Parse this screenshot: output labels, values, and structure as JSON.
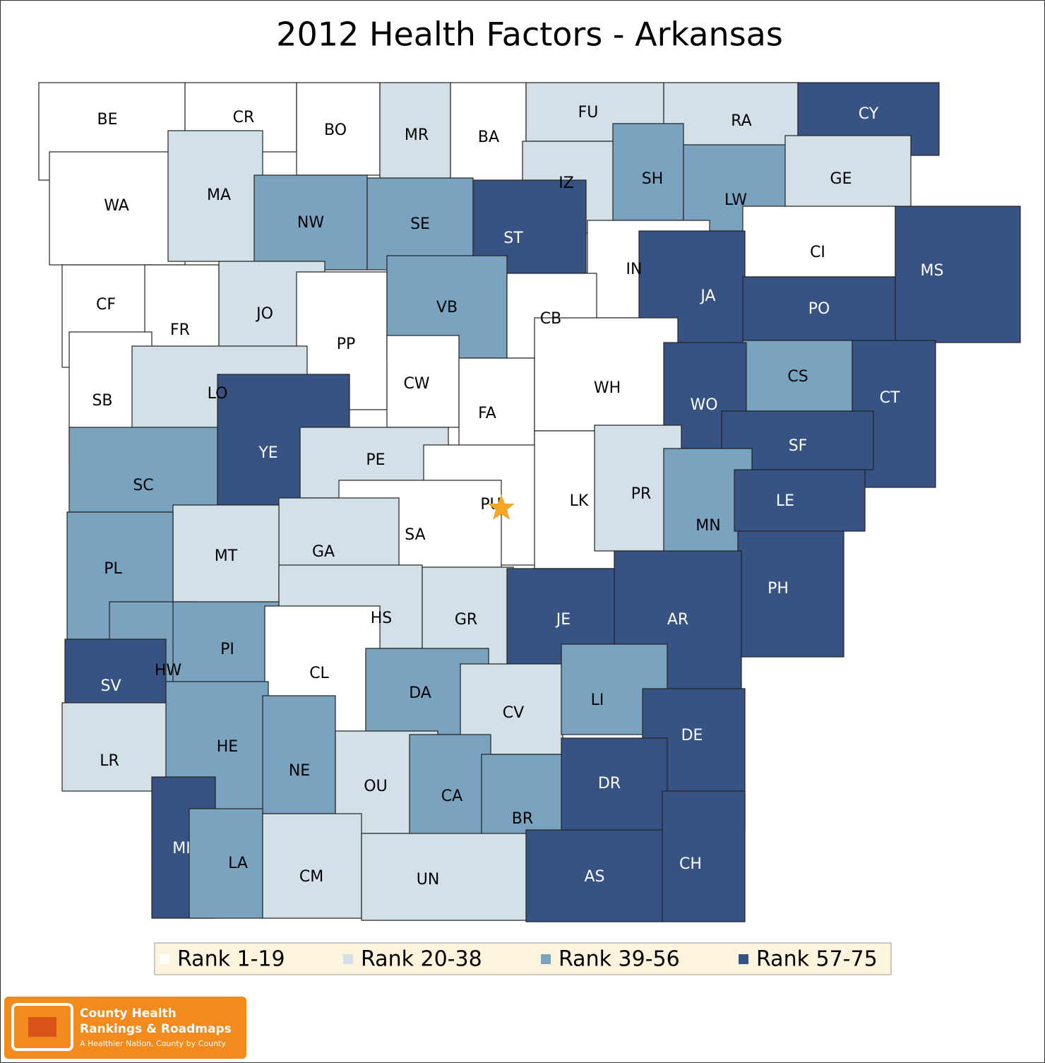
{
  "title": "2012 Health Factors - Arkansas",
  "legend": [
    {
      "label": "Rank 1-19",
      "color": "#ffffff"
    },
    {
      "label": "Rank 20-38",
      "color": "#d3e0e8"
    },
    {
      "label": "Rank 39-56",
      "color": "#7aa3c0"
    },
    {
      "label": "Rank 57-75",
      "color": "#365383"
    }
  ],
  "logo": {
    "line1": "County Health",
    "line2": "Rankings & Roadmaps",
    "tagline": "A Healthier Nation, County by County"
  },
  "counties": [
    {
      "label": "BE",
      "group": "Rank 1-19"
    },
    {
      "label": "CR",
      "group": "Rank 1-19"
    },
    {
      "label": "BO",
      "group": "Rank 1-19"
    },
    {
      "label": "MR",
      "group": "Rank 20-38"
    },
    {
      "label": "BA",
      "group": "Rank 1-19"
    },
    {
      "label": "FU",
      "group": "Rank 20-38"
    },
    {
      "label": "RA",
      "group": "Rank 20-38"
    },
    {
      "label": "CY",
      "group": "Rank 57-75"
    },
    {
      "label": "WA",
      "group": "Rank 1-19"
    },
    {
      "label": "MA",
      "group": "Rank 20-38"
    },
    {
      "label": "NW",
      "group": "Rank 39-56"
    },
    {
      "label": "SE",
      "group": "Rank 39-56"
    },
    {
      "label": "IZ",
      "group": "Rank 20-38"
    },
    {
      "label": "ST",
      "group": "Rank 57-75"
    },
    {
      "label": "SH",
      "group": "Rank 39-56"
    },
    {
      "label": "LW",
      "group": "Rank 39-56"
    },
    {
      "label": "GE",
      "group": "Rank 20-38"
    },
    {
      "label": "CI",
      "group": "Rank 1-19"
    },
    {
      "label": "MS",
      "group": "Rank 57-75"
    },
    {
      "label": "IN",
      "group": "Rank 1-19"
    },
    {
      "label": "JA",
      "group": "Rank 57-75"
    },
    {
      "label": "PO",
      "group": "Rank 57-75"
    },
    {
      "label": "CF",
      "group": "Rank 1-19"
    },
    {
      "label": "FR",
      "group": "Rank 1-19"
    },
    {
      "label": "JO",
      "group": "Rank 20-38"
    },
    {
      "label": "PP",
      "group": "Rank 1-19"
    },
    {
      "label": "VB",
      "group": "Rank 39-56"
    },
    {
      "label": "CB",
      "group": "Rank 1-19"
    },
    {
      "label": "CW",
      "group": "Rank 1-19"
    },
    {
      "label": "FA",
      "group": "Rank 1-19"
    },
    {
      "label": "WH",
      "group": "Rank 1-19"
    },
    {
      "label": "CS",
      "group": "Rank 39-56"
    },
    {
      "label": "CT",
      "group": "Rank 57-75"
    },
    {
      "label": "WO",
      "group": "Rank 57-75"
    },
    {
      "label": "SF",
      "group": "Rank 57-75"
    },
    {
      "label": "SB",
      "group": "Rank 1-19"
    },
    {
      "label": "LO",
      "group": "Rank 20-38"
    },
    {
      "label": "YE",
      "group": "Rank 57-75"
    },
    {
      "label": "SC",
      "group": "Rank 39-56"
    },
    {
      "label": "PE",
      "group": "Rank 20-38"
    },
    {
      "label": "PU",
      "group": "Rank 1-19"
    },
    {
      "label": "LK",
      "group": "Rank 1-19"
    },
    {
      "label": "PR",
      "group": "Rank 20-38"
    },
    {
      "label": "MN",
      "group": "Rank 39-56"
    },
    {
      "label": "LE",
      "group": "Rank 57-75"
    },
    {
      "label": "PH",
      "group": "Rank 57-75"
    },
    {
      "label": "SA",
      "group": "Rank 1-19"
    },
    {
      "label": "GA",
      "group": "Rank 20-38"
    },
    {
      "label": "MT",
      "group": "Rank 20-38"
    },
    {
      "label": "PL",
      "group": "Rank 39-56"
    },
    {
      "label": "HS",
      "group": "Rank 20-38"
    },
    {
      "label": "GR",
      "group": "Rank 20-38"
    },
    {
      "label": "JE",
      "group": "Rank 57-75"
    },
    {
      "label": "AR",
      "group": "Rank 57-75"
    },
    {
      "label": "HW",
      "group": "Rank 39-56"
    },
    {
      "label": "PI",
      "group": "Rank 39-56"
    },
    {
      "label": "SV",
      "group": "Rank 57-75"
    },
    {
      "label": "CL",
      "group": "Rank 1-19"
    },
    {
      "label": "DA",
      "group": "Rank 39-56"
    },
    {
      "label": "CV",
      "group": "Rank 20-38"
    },
    {
      "label": "LI",
      "group": "Rank 39-56"
    },
    {
      "label": "DE",
      "group": "Rank 57-75"
    },
    {
      "label": "LR",
      "group": "Rank 20-38"
    },
    {
      "label": "HE",
      "group": "Rank 39-56"
    },
    {
      "label": "NE",
      "group": "Rank 39-56"
    },
    {
      "label": "OU",
      "group": "Rank 20-38"
    },
    {
      "label": "CA",
      "group": "Rank 39-56"
    },
    {
      "label": "BR",
      "group": "Rank 39-56"
    },
    {
      "label": "DR",
      "group": "Rank 57-75"
    },
    {
      "label": "MI",
      "group": "Rank 57-75"
    },
    {
      "label": "LA",
      "group": "Rank 39-56"
    },
    {
      "label": "CM",
      "group": "Rank 20-38"
    },
    {
      "label": "UN",
      "group": "Rank 20-38"
    },
    {
      "label": "AS",
      "group": "Rank 57-75"
    },
    {
      "label": "CH",
      "group": "Rank 57-75"
    }
  ]
}
